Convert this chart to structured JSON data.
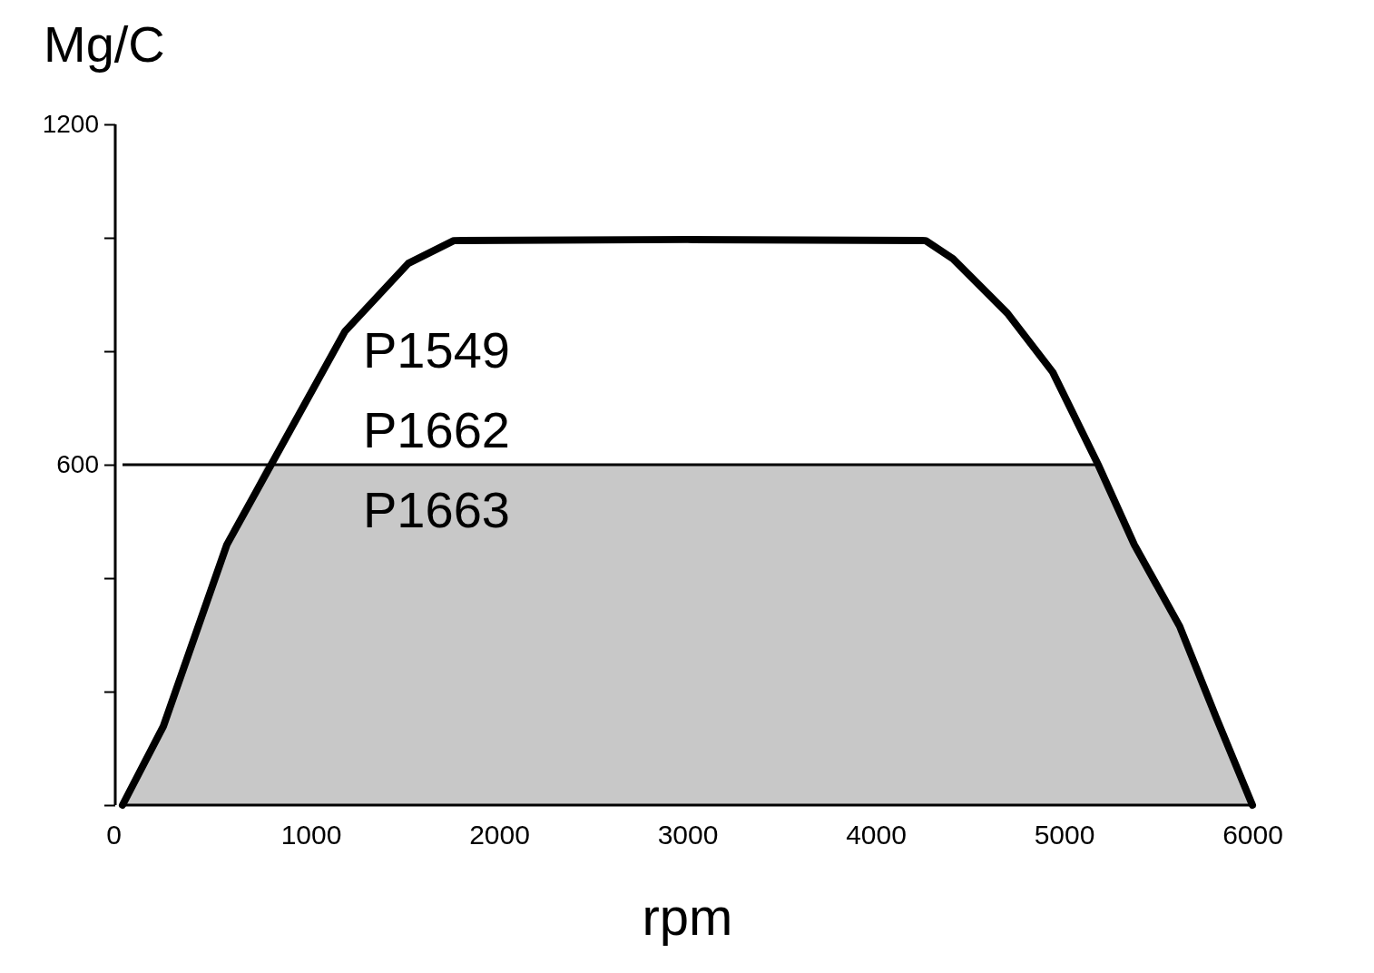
{
  "chart_data": {
    "type": "line",
    "xlabel": "rpm",
    "ylabel": "Mg/C",
    "xlim": [
      0,
      6000
    ],
    "ylim": [
      0,
      1200
    ],
    "xticks": [
      0,
      1000,
      2000,
      3000,
      4000,
      5000,
      6000
    ],
    "yticks": [
      {
        "value": 0,
        "label": null
      },
      {
        "value": 200,
        "label": null
      },
      {
        "value": 400,
        "label": null
      },
      600,
      {
        "value": 800,
        "label": null
      },
      {
        "value": 1000,
        "label": null
      },
      1200
    ],
    "grid": false,
    "marker": "none",
    "line_style": "solid",
    "series": [
      {
        "type": "area",
        "color": "#c8c8c8",
        "x": [
          0,
          217,
          554,
          760,
          5181,
          5373,
          5614,
          5807,
          6000
        ],
        "values": [
          0,
          139,
          459,
          600,
          600,
          459,
          315,
          155,
          0
        ]
      },
      {
        "color": "#000000",
        "x": [
          0,
          217,
          554,
          1181,
          1518,
          1759,
          3000,
          4265,
          4410,
          4699,
          4940,
          5181,
          5373,
          5614,
          5807,
          6000
        ],
        "values": [
          0,
          139,
          459,
          835,
          955,
          995,
          997,
          995,
          963,
          867,
          763,
          600,
          459,
          315,
          155,
          0
        ]
      }
    ],
    "ref_lines": [
      {
        "axis": "y",
        "value": 600,
        "color": "#000000"
      }
    ],
    "annotations": [
      "P1549",
      "P1662",
      "P1663"
    ]
  }
}
